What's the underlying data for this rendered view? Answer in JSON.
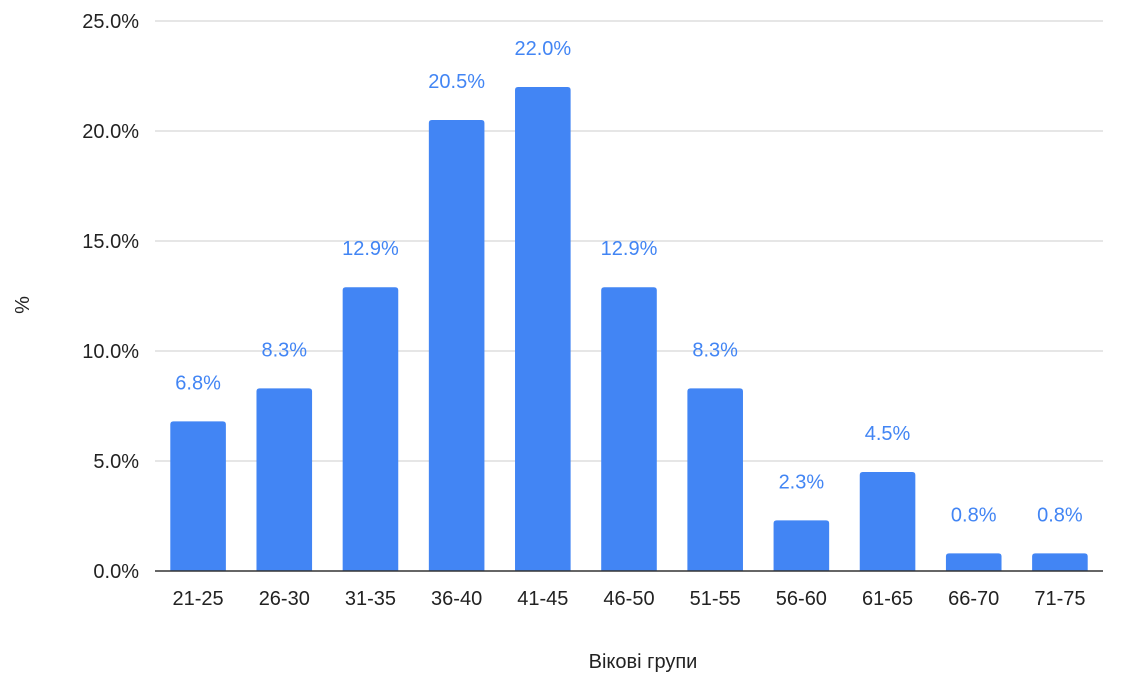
{
  "chart_data": {
    "type": "bar",
    "title": "",
    "xlabel": "Вікові групи",
    "ylabel": "%",
    "categories": [
      "21-25",
      "26-30",
      "31-35",
      "36-40",
      "41-45",
      "46-50",
      "51-55",
      "56-60",
      "61-65",
      "66-70",
      "71-75"
    ],
    "values": [
      6.8,
      8.3,
      12.9,
      20.5,
      22.0,
      12.9,
      8.3,
      2.3,
      4.5,
      0.8,
      0.8
    ],
    "data_labels": [
      "6.8%",
      "8.3%",
      "12.9%",
      "20.5%",
      "22.0%",
      "12.9%",
      "8.3%",
      "2.3%",
      "4.5%",
      "0.8%",
      "0.8%"
    ],
    "ylim": [
      0,
      25
    ],
    "yticks": [
      0,
      5,
      10,
      15,
      20,
      25
    ],
    "ytick_labels": [
      "0.0%",
      "5.0%",
      "10.0%",
      "15.0%",
      "20.0%",
      "25.0%"
    ],
    "grid": true,
    "legend": "none",
    "colors": {
      "bar": "#4285f4",
      "label": "#4285f4",
      "grid": "#cccccc",
      "axis": "#333333"
    }
  }
}
